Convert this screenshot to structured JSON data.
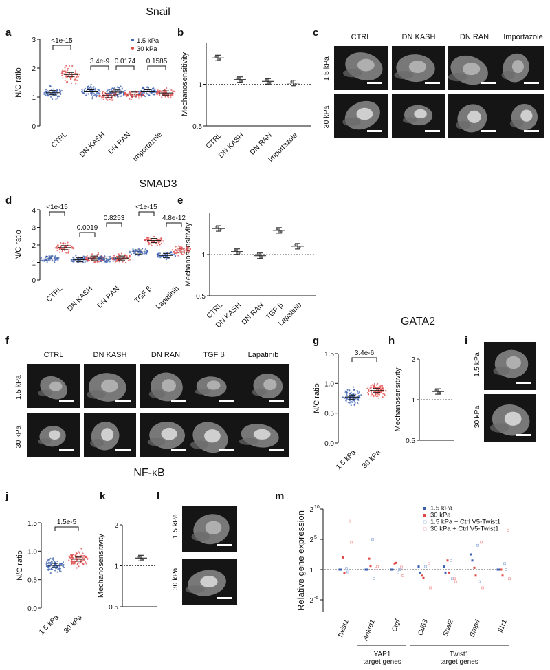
{
  "sections": {
    "snail": "Snail",
    "smad3": "SMAD3",
    "gata2": "GATA2",
    "nfkb": "NF-κB"
  },
  "panel_letters": [
    "a",
    "b",
    "c",
    "d",
    "e",
    "f",
    "g",
    "h",
    "i",
    "j",
    "k",
    "l",
    "m"
  ],
  "conditions": {
    "low": "1.5 kPa",
    "high": "30 kPa"
  },
  "colors": {
    "low": "#3a5fb0",
    "high": "#e04848",
    "low_light": "#9fb6e0",
    "high_light": "#f2a3a3"
  },
  "image_panels": {
    "c_cols": [
      "CTRL",
      "DN KASH",
      "DN RAN",
      "Importazole"
    ],
    "f_cols": [
      "CTRL",
      "DN KASH",
      "DN RAN",
      "TGF β",
      "Lapatinib"
    ],
    "rows": [
      "1.5 kPa",
      "30 kPa"
    ]
  },
  "chart_data": [
    {
      "id": "a",
      "type": "scatter",
      "ylabel": "N/C ratio",
      "ylim": [
        0,
        3
      ],
      "yticks": [
        "0",
        "1",
        "2",
        "3"
      ],
      "categories": [
        "CTRL",
        "DN KASH",
        "DN RAN",
        "Importazole"
      ],
      "series": [
        {
          "name": "1.5 kPa",
          "means": [
            1.15,
            1.18,
            1.17,
            1.18
          ]
        },
        {
          "name": "30 kPa",
          "means": [
            1.78,
            1.05,
            1.1,
            1.14
          ]
        }
      ],
      "pvalues": [
        "<1e-15",
        "3.4e-9",
        "0.0174",
        "0.1585"
      ],
      "legend": [
        "1.5 kPa",
        "30 kPa"
      ]
    },
    {
      "id": "b",
      "type": "scatter",
      "ylabel": "Mechanosensitivity",
      "scale": "log",
      "yticks": [
        "0.5",
        "1"
      ],
      "categories": [
        "CTRL",
        "DN KASH",
        "DN RAN",
        "Importazole"
      ],
      "values": [
        1.55,
        1.08,
        1.05,
        1.02
      ]
    },
    {
      "id": "d",
      "type": "scatter",
      "ylabel": "N/C ratio",
      "ylim": [
        0,
        4
      ],
      "yticks": [
        "0",
        "1",
        "2",
        "3",
        "4"
      ],
      "categories": [
        "CTRL",
        "DN KASH",
        "DN RAN",
        "TGF β",
        "Lapatinib"
      ],
      "series": [
        {
          "name": "1.5 kPa",
          "means": [
            1.2,
            1.15,
            1.2,
            1.6,
            1.4
          ]
        },
        {
          "name": "30 kPa",
          "means": [
            1.85,
            1.25,
            1.25,
            2.25,
            1.7
          ]
        }
      ],
      "pvalues": [
        "<1e-15",
        "0.0019",
        "0.8253",
        "<1e-15",
        "4.8e-12"
      ]
    },
    {
      "id": "e",
      "type": "scatter",
      "ylabel": "Mechanosensitivity",
      "scale": "log",
      "yticks": [
        "0.5",
        "1"
      ],
      "categories": [
        "CTRL",
        "DN KASH",
        "DN RAN",
        "TGF β",
        "Lapatinib"
      ],
      "values": [
        1.55,
        1.05,
        0.98,
        1.5,
        1.15
      ]
    },
    {
      "id": "g",
      "type": "scatter",
      "ylabel": "N/C ratio",
      "ylim": [
        0,
        1.5
      ],
      "yticks": [
        "0.0",
        "0.5",
        "1.0",
        "1.5"
      ],
      "categories": [
        "1.5 kPa",
        "30 kPa"
      ],
      "means": [
        0.77,
        0.88
      ],
      "pvalues": [
        "3.4e-6"
      ]
    },
    {
      "id": "h",
      "type": "scatter",
      "ylabel": "Mechanosensitivity",
      "scale": "log",
      "yticks": [
        "0.5",
        "1",
        "2"
      ],
      "values": [
        1.15
      ]
    },
    {
      "id": "j",
      "type": "scatter",
      "ylabel": "N/C ratio",
      "ylim": [
        0,
        1.5
      ],
      "yticks": [
        "0.0",
        "0.5",
        "1.0",
        "1.5"
      ],
      "categories": [
        "1.5 kPa",
        "30 kPa"
      ],
      "means": [
        0.75,
        0.86
      ],
      "pvalues": [
        "1.5e-5"
      ]
    },
    {
      "id": "k",
      "type": "scatter",
      "ylabel": "Mechanosensitivity",
      "scale": "log",
      "yticks": [
        "0.5",
        "1",
        "2"
      ],
      "values": [
        1.14
      ]
    },
    {
      "id": "m",
      "type": "scatter",
      "ylabel": "Relative gene expression",
      "yticks": [
        "2^10",
        "2^5",
        "1",
        "2^-5"
      ],
      "categories": [
        "Twist1",
        "Ankrd1",
        "Ctgf",
        "Cd63",
        "Snai2",
        "Bmp4",
        "Il1r1"
      ],
      "legend": [
        "1.5 kPa",
        "30 kPa",
        "1.5 kPa + Ctrl V5-Twist1",
        "30 kPa + Ctrl V5-Twist1"
      ],
      "series": [
        {
          "name": "1.5 kPa",
          "values": [
            [
              0.0,
              0.0
            ],
            [
              0.0,
              0.0
            ],
            [
              0.0,
              0.0
            ],
            [
              0.5,
              -0.5
            ],
            [
              0.5,
              -0.5
            ],
            [
              2.5,
              1.5
            ],
            [
              0.0,
              0.0
            ]
          ]
        },
        {
          "name": "30 kPa",
          "values": [
            [
              2.0,
              -0.6
            ],
            [
              1.8,
              0.6
            ],
            [
              1.0,
              1.1
            ],
            [
              -1.0,
              -1.4
            ],
            [
              1.5,
              -0.5
            ],
            [
              0.3,
              -1.0
            ],
            [
              0.0,
              -1.0
            ]
          ]
        },
        {
          "name": "1.5 kPa + Ctrl V5-Twist1",
          "values": [
            [
              0.2,
              -0.4
            ],
            [
              5.0,
              -1.5
            ],
            [
              -0.5,
              0.0
            ],
            [
              0.5,
              0.1
            ],
            [
              1.5,
              -1.5
            ],
            [
              4.0,
              -2.0
            ],
            [
              1.0,
              0.0
            ]
          ]
        },
        {
          "name": "30 kPa + Ctrl V5-Twist1",
          "values": [
            [
              8.0,
              4.5
            ],
            [
              0.2,
              0.5
            ],
            [
              0.4,
              -1.0
            ],
            [
              1.0,
              -3.0
            ],
            [
              -1.5,
              -2.0
            ],
            [
              4.5,
              -3.0
            ],
            [
              6.5,
              -1.5
            ]
          ]
        }
      ],
      "groups": [
        {
          "label": "YAP1\ntarget genes",
          "from": 1,
          "to": 2
        },
        {
          "label": "Twist1\ntarget genes",
          "from": 3,
          "to": 6
        }
      ]
    }
  ]
}
